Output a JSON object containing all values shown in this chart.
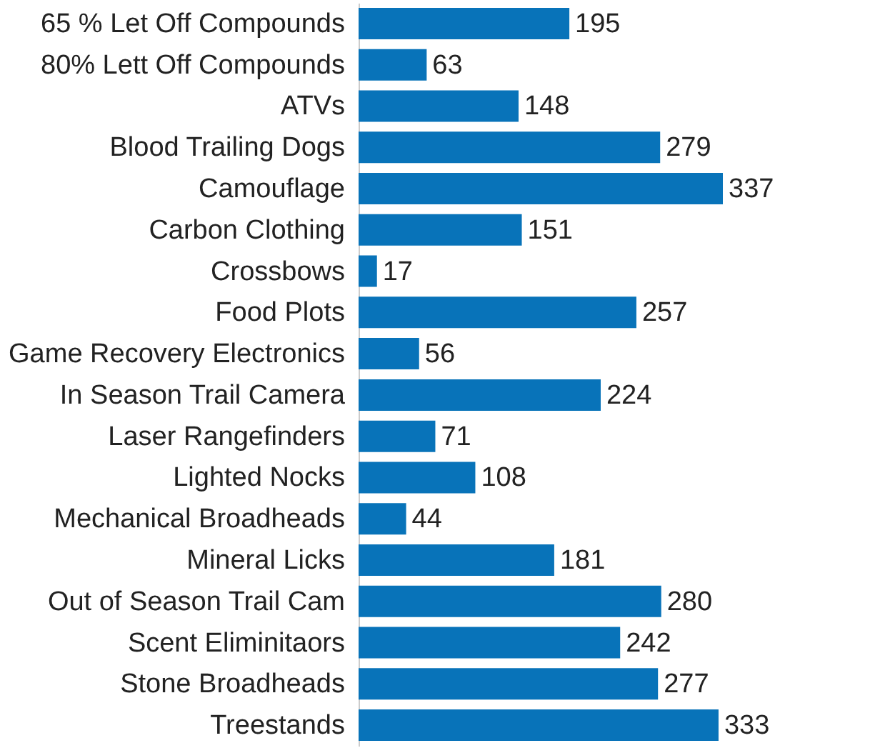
{
  "chart_data": {
    "type": "bar",
    "orientation": "horizontal",
    "data_labels": true,
    "color": "#0873b9",
    "categories": [
      "65 % Let Off Compounds",
      "80% Lett Off Compounds",
      "ATVs",
      "Blood Trailing Dogs",
      "Camouflage",
      "Carbon Clothing",
      "Crossbows",
      "Food Plots",
      "Game Recovery Electronics",
      "In Season Trail Camera",
      "Laser Rangefinders",
      "Lighted Nocks",
      "Mechanical Broadheads",
      "Mineral Licks",
      "Out of Season Trail Cam",
      "Scent Eliminitaors",
      "Stone Broadheads",
      "Treestands"
    ],
    "values": [
      195,
      63,
      148,
      279,
      337,
      151,
      17,
      257,
      56,
      224,
      71,
      108,
      44,
      181,
      280,
      242,
      277,
      333
    ]
  }
}
